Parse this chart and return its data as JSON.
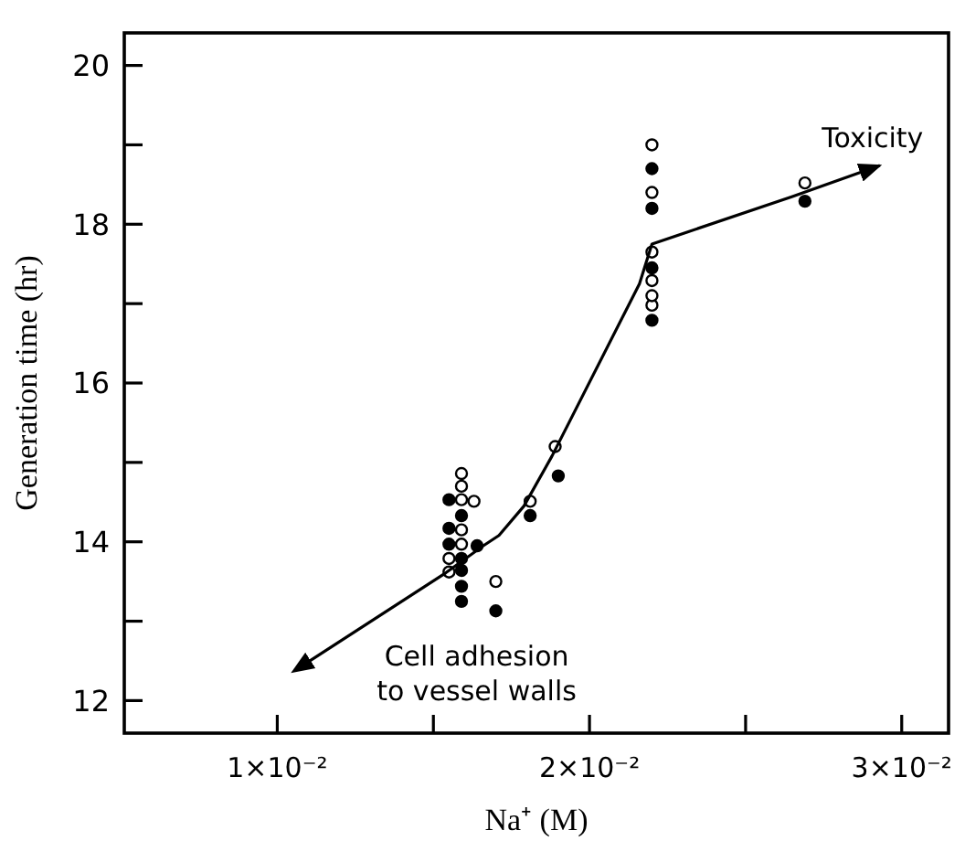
{
  "chart_data": {
    "type": "scatter",
    "xlabel": "Na⁺ (M)",
    "ylabel": "Generation time (hr)",
    "xlim": [
      0.0051,
      0.0315
    ],
    "ylim": [
      11.59,
      20.41
    ],
    "xticks": [
      {
        "value": 0.01,
        "label": "1×10⁻²"
      },
      {
        "value": 0.015,
        "label": null
      },
      {
        "value": 0.02,
        "label": "2×10⁻²"
      },
      {
        "value": 0.025,
        "label": null
      },
      {
        "value": 0.03,
        "label": "3×10⁻²"
      }
    ],
    "yticks": [
      12,
      {
        "value": 13,
        "label": null
      },
      14,
      {
        "value": 15,
        "label": null
      },
      16,
      {
        "value": 17,
        "label": null
      },
      18,
      {
        "value": 19,
        "label": null
      },
      20
    ],
    "grid": false,
    "series": [
      {
        "color": "#ffffff",
        "marker": "circle",
        "x": [
          0.0159,
          0.0159,
          0.0159,
          0.0163,
          0.0159,
          0.0159,
          0.0155,
          0.0155,
          0.017,
          0.0181,
          0.0189,
          0.022,
          0.022,
          0.022,
          0.022,
          0.022,
          0.022,
          0.0269
        ],
        "values": [
          14.86,
          14.7,
          14.53,
          14.51,
          14.15,
          13.97,
          13.79,
          13.62,
          13.5,
          14.51,
          15.2,
          19.0,
          18.4,
          17.65,
          17.29,
          16.98,
          17.1,
          18.52
        ]
      },
      {
        "color": "#000000",
        "marker": "circle",
        "x": [
          0.0155,
          0.0159,
          0.0155,
          0.0155,
          0.0164,
          0.0159,
          0.0159,
          0.0159,
          0.0159,
          0.017,
          0.0181,
          0.019,
          0.022,
          0.022,
          0.022,
          0.022,
          0.0269
        ],
        "values": [
          14.53,
          14.33,
          14.17,
          13.97,
          13.95,
          13.79,
          13.64,
          13.44,
          13.25,
          13.13,
          14.33,
          14.83,
          18.7,
          18.2,
          17.45,
          16.79,
          18.29
        ]
      },
      {
        "type": "line",
        "color": "#000000",
        "line_style": "solid",
        "marker": "none",
        "x": [
          0.011,
          0.0154,
          0.0166,
          0.0171,
          0.0179,
          0.0188,
          0.0216,
          0.022,
          0.0265,
          0.0293
        ],
        "values": [
          12.49,
          13.61,
          13.95,
          14.08,
          14.45,
          15.08,
          17.25,
          17.75,
          18.35,
          18.74
        ]
      }
    ],
    "annotations": [
      {
        "text": "Toxicity",
        "x": 0.0293,
        "y": 18.74
      },
      {
        "text": "Cell adhesion\nto vessel walls",
        "x": 0.011,
        "y": 12.49
      }
    ]
  }
}
